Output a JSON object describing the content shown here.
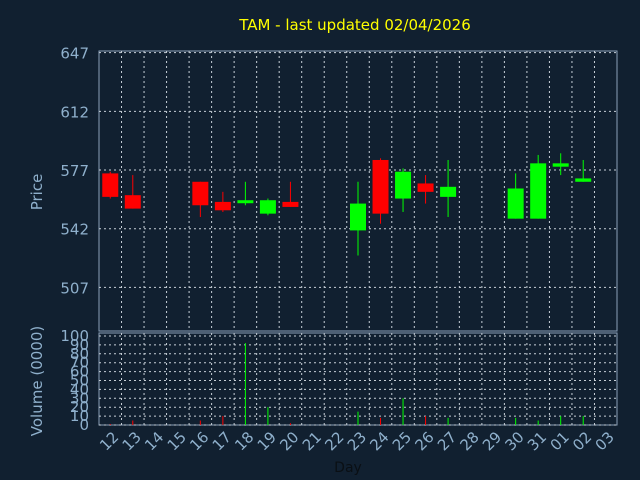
{
  "chart_data": {
    "type": "candlestick",
    "title": "TAM - last updated 02/04/2026",
    "price_axis": {
      "label": "Price",
      "ticks": [
        507,
        542,
        577,
        612,
        647
      ],
      "ylim": [
        481,
        648
      ]
    },
    "volume_axis": {
      "label": "Volume (0000)",
      "ticks": [
        0,
        10,
        20,
        30,
        40,
        50,
        60,
        70,
        80,
        90,
        100
      ],
      "ylim": [
        0,
        100
      ]
    },
    "xlabel": "Day",
    "x_ticks": [
      "12",
      "13",
      "14",
      "15",
      "16",
      "17",
      "18",
      "19",
      "20",
      "21",
      "22",
      "23",
      "24",
      "25",
      "26",
      "27",
      "28",
      "29",
      "30",
      "31",
      "01",
      "02",
      "03"
    ],
    "grid": true,
    "colors": {
      "background": "#112030",
      "plot_border": "#8aa0b8",
      "grid": "#c8d0d8",
      "up": "#00ff00",
      "down": "#ff0000",
      "title": "#ffff00",
      "axis_text": "#8fb0cc",
      "doji": "#00ff00"
    },
    "candles": [
      {
        "day": "12",
        "open": 575,
        "close": 561,
        "high": 576,
        "low": 560,
        "volume": 1
      },
      {
        "day": "13",
        "open": 562,
        "close": 554,
        "high": 574,
        "low": 554,
        "volume": 5
      },
      {
        "day": "16",
        "open": 570,
        "close": 556,
        "high": 570,
        "low": 549,
        "volume": 5
      },
      {
        "day": "17",
        "open": 558,
        "close": 553,
        "high": 564,
        "low": 552,
        "volume": 10
      },
      {
        "day": "18",
        "open": 559,
        "close": 559,
        "high": 570,
        "low": 556,
        "volume": 92
      },
      {
        "day": "19",
        "open": 551,
        "close": 559,
        "high": 560,
        "low": 550,
        "volume": 20
      },
      {
        "day": "20",
        "open": 558,
        "close": 555,
        "high": 570,
        "low": 555,
        "volume": 2
      },
      {
        "day": "23",
        "open": 541,
        "close": 557,
        "high": 570,
        "low": 526,
        "volume": 15
      },
      {
        "day": "24",
        "open": 583,
        "close": 551,
        "high": 584,
        "low": 545,
        "volume": 8
      },
      {
        "day": "25",
        "open": 560,
        "close": 576,
        "high": 578,
        "low": 552,
        "volume": 30
      },
      {
        "day": "26",
        "open": 569,
        "close": 564,
        "high": 574,
        "low": 557,
        "volume": 10
      },
      {
        "day": "27",
        "open": 561,
        "close": 567,
        "high": 583,
        "low": 549,
        "volume": 8
      },
      {
        "day": "30",
        "open": 548,
        "close": 566,
        "high": 575,
        "low": 548,
        "volume": 8
      },
      {
        "day": "31",
        "open": 548,
        "close": 581,
        "high": 586,
        "low": 548,
        "volume": 5
      },
      {
        "day": "01",
        "open": 579,
        "close": 581,
        "high": 587,
        "low": 574,
        "volume": 10
      },
      {
        "day": "02",
        "open": 570,
        "close": 572,
        "high": 583,
        "low": 570,
        "volume": 10
      }
    ]
  }
}
